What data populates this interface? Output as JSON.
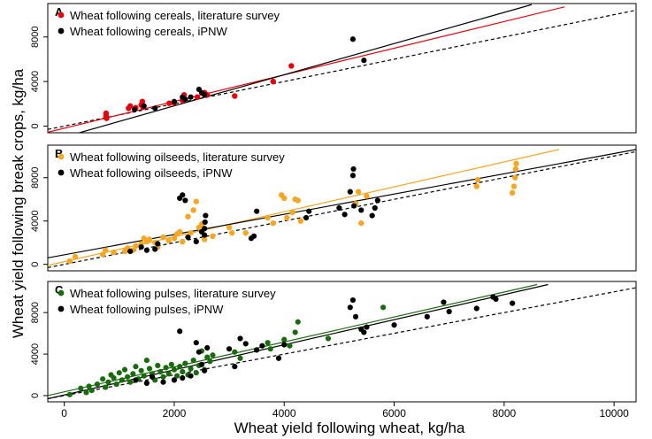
{
  "figure": {
    "ylabel": "Wheat yield following break crops, kg/ha",
    "xlabel": "Wheat yield following wheat, kg/ha",
    "x_ticks": [
      0,
      2000,
      4000,
      6000,
      8000,
      10000
    ],
    "x_tick_labels": [
      "0",
      "2000",
      "4000",
      "6000",
      "8000",
      "10000"
    ],
    "xlim": [
      -300,
      10400
    ]
  },
  "chart_data": [
    {
      "type": "scatter",
      "panel": "A",
      "ylim": [
        -600,
        11000
      ],
      "y_ticks": [
        0,
        4000,
        8000
      ],
      "y_tick_labels": [
        "0",
        "4000",
        "8000"
      ],
      "legend_position": "top-left",
      "series": [
        {
          "name": "Wheat following cereals, literature survey",
          "color": "#e8000b",
          "points": [
            [
              760,
              900
            ],
            [
              760,
              1150
            ],
            [
              770,
              700
            ],
            [
              1170,
              1600
            ],
            [
              1200,
              1800
            ],
            [
              1300,
              1650
            ],
            [
              1400,
              1900
            ],
            [
              1420,
              2200
            ],
            [
              1430,
              1700
            ],
            [
              1910,
              2050
            ],
            [
              2000,
              2100
            ],
            [
              2150,
              2300
            ],
            [
              2180,
              2800
            ],
            [
              2420,
              2600
            ],
            [
              2550,
              3000
            ],
            [
              2600,
              2800
            ],
            [
              3100,
              2700
            ],
            [
              3800,
              4000
            ],
            [
              4130,
              5400
            ]
          ]
        },
        {
          "name": "Wheat following cereals, iPNW",
          "color": "#000000",
          "points": [
            [
              1280,
              1500
            ],
            [
              1450,
              1800
            ],
            [
              1650,
              1600
            ],
            [
              2000,
              2200
            ],
            [
              2150,
              2600
            ],
            [
              2200,
              2400
            ],
            [
              2300,
              2600
            ],
            [
              2450,
              3300
            ],
            [
              2500,
              3000
            ],
            [
              2550,
              2800
            ],
            [
              5250,
              7800
            ],
            [
              5450,
              5900
            ]
          ]
        }
      ],
      "lines": [
        {
          "name": "1:1",
          "style": "dashed",
          "color": "#000000",
          "x": [
            -300,
            10400
          ],
          "y": [
            -300,
            10400
          ]
        },
        {
          "name": "cereals literature fit",
          "style": "solid",
          "color": "#e8000b",
          "x": [
            -300,
            9100
          ],
          "y": [
            -550,
            10700
          ]
        },
        {
          "name": "cereals iPNW fit",
          "style": "solid",
          "color": "#000000",
          "x": [
            -300,
            8500
          ],
          "y": [
            -1400,
            10900
          ]
        }
      ]
    },
    {
      "type": "scatter",
      "panel": "B",
      "ylim": [
        -600,
        11000
      ],
      "y_ticks": [
        0,
        4000,
        8000
      ],
      "y_tick_labels": [
        "0",
        "4000",
        "8000"
      ],
      "legend_position": "top-left",
      "series": [
        {
          "name": "Wheat following oilseeds, literature survey",
          "color": "#f5a623",
          "points": [
            [
              100,
              300
            ],
            [
              200,
              700
            ],
            [
              700,
              900
            ],
            [
              750,
              1300
            ],
            [
              900,
              1100
            ],
            [
              1100,
              1200
            ],
            [
              1150,
              1500
            ],
            [
              1250,
              1300
            ],
            [
              1300,
              1700
            ],
            [
              1400,
              1900
            ],
            [
              1450,
              2400
            ],
            [
              1500,
              2100
            ],
            [
              1550,
              2300
            ],
            [
              1650,
              2000
            ],
            [
              1700,
              1600
            ],
            [
              1800,
              2500
            ],
            [
              1900,
              2200
            ],
            [
              2000,
              2400
            ],
            [
              2050,
              2800
            ],
            [
              2100,
              3000
            ],
            [
              2150,
              2100
            ],
            [
              2250,
              4400
            ],
            [
              2300,
              2900
            ],
            [
              2350,
              5000
            ],
            [
              2400,
              5800
            ],
            [
              2450,
              3400
            ],
            [
              2500,
              3700
            ],
            [
              2550,
              2300
            ],
            [
              2700,
              2600
            ],
            [
              3000,
              3400
            ],
            [
              3050,
              2900
            ],
            [
              3300,
              2900
            ],
            [
              3700,
              4300
            ],
            [
              3800,
              3800
            ],
            [
              3950,
              6400
            ],
            [
              4000,
              6100
            ],
            [
              4050,
              4300
            ],
            [
              4150,
              4800
            ],
            [
              4200,
              6000
            ],
            [
              4250,
              5900
            ],
            [
              4300,
              4000
            ],
            [
              5300,
              5600
            ],
            [
              5350,
              6700
            ],
            [
              5400,
              3800
            ],
            [
              5500,
              6300
            ],
            [
              7500,
              7200
            ],
            [
              7520,
              7800
            ],
            [
              8150,
              6600
            ],
            [
              8180,
              7200
            ],
            [
              8200,
              8000
            ],
            [
              8210,
              8800
            ],
            [
              8220,
              9300
            ]
          ]
        },
        {
          "name": "Wheat following oilseeds, iPNW",
          "color": "#000000",
          "points": [
            [
              1200,
              1200
            ],
            [
              1400,
              1600
            ],
            [
              1500,
              1300
            ],
            [
              1650,
              1400
            ],
            [
              1700,
              1900
            ],
            [
              2100,
              6100
            ],
            [
              2150,
              6400
            ],
            [
              2200,
              5900
            ],
            [
              2250,
              2500
            ],
            [
              2400,
              2100
            ],
            [
              2500,
              3000
            ],
            [
              2550,
              2700
            ],
            [
              2550,
              3300
            ],
            [
              2560,
              3900
            ],
            [
              2570,
              4500
            ],
            [
              3400,
              2400
            ],
            [
              3450,
              2600
            ],
            [
              3500,
              4900
            ],
            [
              4400,
              4300
            ],
            [
              4450,
              4900
            ],
            [
              5000,
              5200
            ],
            [
              5100,
              4600
            ],
            [
              5200,
              6700
            ],
            [
              5250,
              8200
            ],
            [
              5260,
              8800
            ],
            [
              5270,
              5400
            ],
            [
              5400,
              5000
            ],
            [
              5600,
              4500
            ],
            [
              5650,
              5200
            ],
            [
              5700,
              5900
            ]
          ]
        }
      ],
      "lines": [
        {
          "name": "1:1",
          "style": "dashed",
          "color": "#000000",
          "x": [
            -300,
            10400
          ],
          "y": [
            -300,
            10400
          ]
        },
        {
          "name": "oilseeds literature fit",
          "style": "solid",
          "color": "#f5a623",
          "x": [
            -300,
            9000
          ],
          "y": [
            -100,
            10600
          ]
        },
        {
          "name": "oilseeds iPNW fit",
          "style": "solid",
          "color": "#000000",
          "x": [
            -300,
            10400
          ],
          "y": [
            600,
            10600
          ]
        }
      ]
    },
    {
      "type": "scatter",
      "panel": "C",
      "ylim": [
        -600,
        11000
      ],
      "y_ticks": [
        0,
        4000,
        8000
      ],
      "y_tick_labels": [
        "0",
        "4000",
        "8000"
      ],
      "legend_position": "top-left",
      "series": [
        {
          "name": "Wheat following pulses, literature survey",
          "color": "#1a6b0f",
          "points": [
            [
              100,
              100
            ],
            [
              300,
              700
            ],
            [
              400,
              300
            ],
            [
              450,
              900
            ],
            [
              500,
              500
            ],
            [
              600,
              1100
            ],
            [
              700,
              1600
            ],
            [
              750,
              800
            ],
            [
              800,
              1300
            ],
            [
              850,
              2000
            ],
            [
              900,
              1700
            ],
            [
              950,
              1100
            ],
            [
              1000,
              2200
            ],
            [
              1050,
              1500
            ],
            [
              1100,
              2500
            ],
            [
              1150,
              1800
            ],
            [
              1200,
              1300
            ],
            [
              1250,
              2100
            ],
            [
              1300,
              2800
            ],
            [
              1350,
              1600
            ],
            [
              1400,
              2400
            ],
            [
              1450,
              1900
            ],
            [
              1500,
              3400
            ],
            [
              1550,
              2600
            ],
            [
              1600,
              2100
            ],
            [
              1650,
              1500
            ],
            [
              1700,
              2900
            ],
            [
              1750,
              2300
            ],
            [
              1800,
              1800
            ],
            [
              1850,
              2700
            ],
            [
              1900,
              2100
            ],
            [
              1950,
              3000
            ],
            [
              2000,
              2500
            ],
            [
              2050,
              1900
            ],
            [
              2100,
              2800
            ],
            [
              2150,
              2300
            ],
            [
              2200,
              3100
            ],
            [
              2250,
              2000
            ],
            [
              2300,
              2600
            ],
            [
              2350,
              3400
            ],
            [
              2400,
              2200
            ],
            [
              2450,
              2900
            ],
            [
              2500,
              4300
            ],
            [
              2550,
              2500
            ],
            [
              2600,
              3700
            ],
            [
              2650,
              3300
            ],
            [
              2700,
              3900
            ],
            [
              3100,
              4200
            ],
            [
              3200,
              3600
            ],
            [
              3700,
              5100
            ],
            [
              3750,
              4500
            ],
            [
              4000,
              5400
            ],
            [
              4100,
              4800
            ],
            [
              4200,
              6100
            ],
            [
              4250,
              7100
            ],
            [
              4800,
              5500
            ],
            [
              5800,
              8500
            ]
          ]
        },
        {
          "name": "Wheat following pulses, iPNW",
          "color": "#000000",
          "points": [
            [
              1300,
              1500
            ],
            [
              1500,
              1200
            ],
            [
              1600,
              1800
            ],
            [
              1800,
              1300
            ],
            [
              2000,
              1500
            ],
            [
              2100,
              6200
            ],
            [
              2150,
              1700
            ],
            [
              2300,
              1900
            ],
            [
              2400,
              5100
            ],
            [
              2450,
              4200
            ],
            [
              2500,
              3000
            ],
            [
              2550,
              2400
            ],
            [
              2600,
              4600
            ],
            [
              3000,
              4500
            ],
            [
              3100,
              2800
            ],
            [
              3200,
              5500
            ],
            [
              3300,
              5000
            ],
            [
              3500,
              4400
            ],
            [
              3600,
              4800
            ],
            [
              3900,
              3600
            ],
            [
              4000,
              4900
            ],
            [
              5200,
              8500
            ],
            [
              5250,
              9200
            ],
            [
              5300,
              7600
            ],
            [
              5400,
              6400
            ],
            [
              5450,
              6100
            ],
            [
              5500,
              6600
            ],
            [
              6000,
              6800
            ],
            [
              6600,
              7600
            ],
            [
              6900,
              9000
            ],
            [
              7000,
              8100
            ],
            [
              7500,
              8400
            ],
            [
              7800,
              9500
            ],
            [
              7850,
              9300
            ],
            [
              8150,
              8900
            ]
          ]
        }
      ],
      "lines": [
        {
          "name": "1:1",
          "style": "dashed",
          "color": "#000000",
          "x": [
            -300,
            10400
          ],
          "y": [
            -300,
            10400
          ]
        },
        {
          "name": "pulses literature fit",
          "style": "solid",
          "color": "#1a6b0f",
          "x": [
            -300,
            8600
          ],
          "y": [
            0,
            10700
          ]
        },
        {
          "name": "pulses iPNW fit",
          "style": "solid",
          "color": "#000000",
          "x": [
            -300,
            8800
          ],
          "y": [
            -300,
            10700
          ]
        }
      ]
    }
  ]
}
